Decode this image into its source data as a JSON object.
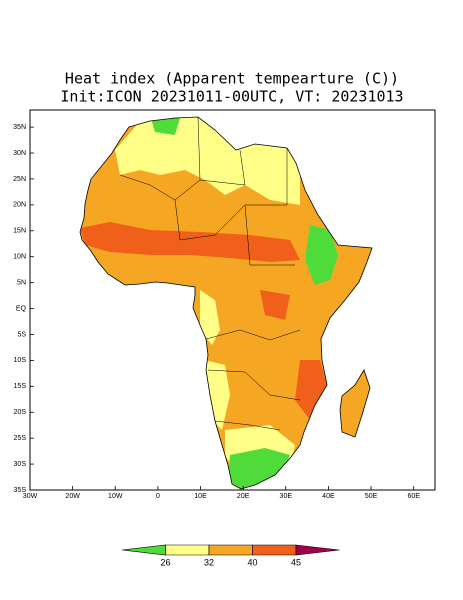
{
  "title": [
    "Heat index (Apparent tempearture (C))",
    "Init:ICON 20231011-00UTC, VT: 20231013"
  ],
  "map": {
    "xlim": [
      -30,
      65
    ],
    "ylim": [
      -35,
      38.3
    ],
    "xticks": [
      {
        "value": -30,
        "label": "30W"
      },
      {
        "value": -20,
        "label": "20W"
      },
      {
        "value": -10,
        "label": "10W"
      },
      0,
      {
        "value": 10,
        "label": "10E"
      },
      {
        "value": 20,
        "label": "20E"
      },
      {
        "value": 30,
        "label": "30E"
      },
      {
        "value": 40,
        "label": "40E"
      },
      {
        "value": 50,
        "label": "50E"
      },
      {
        "value": 60,
        "label": "60E"
      }
    ],
    "yticks": [
      {
        "value": 35,
        "label": "35N"
      },
      {
        "value": 30,
        "label": "30N"
      },
      {
        "value": 25,
        "label": "25N"
      },
      {
        "value": 20,
        "label": "20N"
      },
      {
        "value": 15,
        "label": "15N"
      },
      {
        "value": 10,
        "label": "10N"
      },
      {
        "value": 5,
        "label": "5N"
      },
      {
        "value": 0,
        "label": "EQ"
      },
      {
        "value": -5,
        "label": "5S"
      },
      {
        "value": -10,
        "label": "10S"
      },
      {
        "value": -15,
        "label": "15S"
      },
      {
        "value": -20,
        "label": "20S"
      },
      {
        "value": -25,
        "label": "25S"
      },
      {
        "value": -30,
        "label": "30S"
      },
      {
        "value": -35,
        "label": "35S"
      }
    ]
  },
  "colorbar": {
    "levels": [
      26,
      32,
      40,
      45
    ],
    "colors": [
      "#4fdc3a",
      "#ffff88",
      "#f5a623",
      "#f0601a",
      "#a0004e"
    ]
  }
}
